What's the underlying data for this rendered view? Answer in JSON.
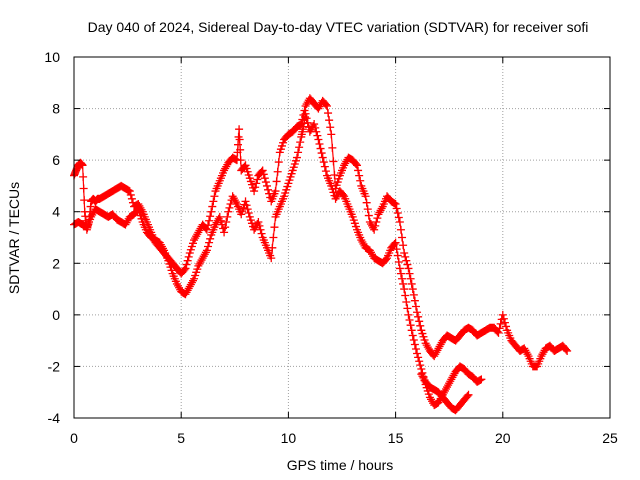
{
  "chart_data": {
    "type": "line",
    "title": "Day 040 of 2024, Sidereal Day-to-day VTEC variation (SDTVAR) for receiver sofi",
    "xlabel": "GPS time / hours",
    "ylabel": "SDTVAR / TECUs",
    "xlim": [
      0,
      25
    ],
    "ylim": [
      -4,
      10
    ],
    "xticks": [
      0,
      5,
      10,
      15,
      20,
      25
    ],
    "yticks": [
      -4,
      -2,
      0,
      2,
      4,
      6,
      8,
      10
    ],
    "grid": true,
    "marker": "+",
    "series_color": "#ff0000",
    "series": [
      {
        "name": "sofi",
        "x": [
          0.0,
          0.1,
          0.2,
          0.3,
          0.4,
          0.5,
          0.6,
          0.7,
          0.8,
          0.9,
          1.0,
          1.1,
          1.2,
          1.4,
          1.6,
          1.8,
          2.0,
          2.2,
          2.4,
          2.6,
          2.8,
          3.0,
          3.2,
          3.4,
          3.6,
          3.8,
          4.0,
          4.2,
          4.4,
          4.6,
          4.8,
          5.0,
          5.2,
          5.4,
          5.6,
          5.8,
          6.0,
          6.2,
          6.4,
          6.6,
          6.8,
          7.0,
          7.2,
          7.4,
          7.6,
          7.7,
          7.8,
          8.0,
          8.2,
          8.4,
          8.6,
          8.8,
          9.0,
          9.2,
          9.4,
          9.6,
          9.8,
          10.0,
          10.2,
          10.4,
          10.6,
          10.8,
          11.0,
          11.2,
          11.4,
          11.6,
          11.8,
          12.0,
          12.2,
          12.4,
          12.6,
          12.8,
          13.0,
          13.2,
          13.4,
          13.6,
          13.8,
          14.0,
          14.2,
          14.4,
          14.6,
          14.8,
          15.0,
          15.2,
          15.4,
          15.6,
          15.8,
          16.0,
          16.2,
          16.4,
          16.6,
          16.8,
          17.0,
          17.2,
          17.4,
          17.6,
          17.8,
          18.0,
          18.2,
          18.4,
          18.6,
          18.8,
          19.0,
          19.2,
          19.4,
          19.6,
          19.8,
          20.0,
          20.2,
          20.4,
          20.6,
          20.8,
          21.0,
          21.2,
          21.4,
          21.6,
          21.8,
          22.0,
          22.2,
          22.4,
          22.6,
          22.8,
          23.0
        ],
        "y": [
          5.4,
          5.6,
          5.8,
          5.9,
          5.8,
          4.0,
          3.3,
          3.6,
          4.4,
          4.5,
          4.4,
          4.5,
          4.5,
          4.6,
          4.7,
          4.8,
          4.9,
          5.0,
          4.9,
          4.8,
          4.2,
          4.3,
          4.0,
          3.6,
          3.2,
          2.8,
          2.6,
          2.4,
          2.2,
          2.0,
          1.8,
          1.6,
          1.8,
          2.4,
          2.9,
          3.2,
          3.5,
          3.3,
          4.0,
          4.8,
          5.2,
          5.6,
          5.9,
          6.1,
          6.0,
          7.2,
          5.6,
          5.8,
          5.3,
          4.8,
          5.4,
          5.6,
          5.0,
          4.4,
          4.8,
          6.3,
          6.8,
          7.0,
          7.1,
          7.3,
          7.4,
          8.1,
          8.4,
          8.2,
          8.0,
          8.3,
          8.1,
          7.0,
          4.9,
          5.4,
          5.8,
          6.1,
          6.0,
          5.8,
          5.0,
          4.6,
          3.6,
          3.3,
          3.9,
          4.2,
          4.6,
          4.4,
          4.3,
          3.6,
          2.4,
          1.8,
          1.0,
          0.1,
          -0.6,
          -1.1,
          -1.4,
          -1.6,
          -1.3,
          -1.0,
          -0.8,
          -0.9,
          -1.0,
          -0.8,
          -0.6,
          -0.5,
          -0.6,
          -0.8,
          -0.7,
          -0.6,
          -0.5,
          -0.5,
          -0.7,
          0.0,
          -0.6,
          -1.0,
          -1.2,
          -1.4,
          -1.3,
          -1.6,
          -2.0,
          -2.0,
          -1.6,
          -1.3,
          -1.2,
          -1.4,
          -1.3,
          -1.2,
          -1.4
        ]
      },
      {
        "name": "sofi",
        "x": [
          0.0,
          0.2,
          0.4,
          0.6,
          0.8,
          1.0,
          1.2,
          1.4,
          1.6,
          1.8,
          2.0,
          2.2,
          2.4,
          2.6,
          2.8,
          3.0,
          3.2,
          3.4,
          3.6,
          3.8,
          4.0,
          4.2,
          4.4,
          4.6,
          4.8,
          5.0,
          5.2,
          5.4,
          5.6,
          5.8,
          6.0,
          6.2,
          6.4,
          6.6,
          6.8,
          7.0,
          7.2,
          7.4,
          7.6,
          7.8,
          8.0,
          8.2,
          8.4,
          8.6,
          8.8,
          9.0,
          9.2,
          9.4,
          9.6,
          9.8,
          10.0,
          10.2,
          10.4,
          10.6,
          10.7,
          10.8,
          11.0,
          11.2,
          11.4,
          11.6,
          11.8,
          12.0,
          12.2,
          12.4,
          12.6,
          12.8,
          13.0,
          13.2,
          13.4,
          13.6,
          13.8,
          14.0,
          14.2,
          14.4,
          14.6,
          14.8,
          15.0,
          15.2,
          15.4,
          15.6,
          15.8,
          16.0,
          16.2,
          16.4,
          16.6,
          16.8,
          17.0,
          17.2,
          17.4,
          17.6,
          17.8,
          18.0,
          18.2,
          18.4,
          18.6,
          18.8,
          19.0
        ],
        "y": [
          3.5,
          3.6,
          3.5,
          3.4,
          3.8,
          4.1,
          4.0,
          3.9,
          3.8,
          3.9,
          3.7,
          3.6,
          3.5,
          3.8,
          3.9,
          4.1,
          3.6,
          3.2,
          3.0,
          2.9,
          2.8,
          2.5,
          2.1,
          1.6,
          1.2,
          0.9,
          0.8,
          1.1,
          1.4,
          1.9,
          2.2,
          2.5,
          3.1,
          3.5,
          3.8,
          3.2,
          4.0,
          4.6,
          4.3,
          3.9,
          4.4,
          3.8,
          3.3,
          3.6,
          3.0,
          2.6,
          2.2,
          3.8,
          4.2,
          4.6,
          5.1,
          5.6,
          6.1,
          6.9,
          7.3,
          7.8,
          7.1,
          7.4,
          6.8,
          6.1,
          5.4,
          5.0,
          4.5,
          4.8,
          4.6,
          4.2,
          3.8,
          3.3,
          2.9,
          2.6,
          2.5,
          2.2,
          2.1,
          2.0,
          2.2,
          2.6,
          2.8,
          1.8,
          1.0,
          0.0,
          -0.8,
          -1.5,
          -2.1,
          -2.7,
          -3.2,
          -3.5,
          -3.4,
          -3.1,
          -2.8,
          -2.5,
          -2.2,
          -2.0,
          -2.1,
          -2.3,
          -2.4,
          -2.6,
          -2.5
        ]
      },
      {
        "name": "sofi",
        "x": [
          16.2,
          16.4,
          16.6,
          16.8,
          17.0,
          17.2,
          17.4,
          17.6,
          17.8,
          18.0,
          18.2,
          18.4
        ],
        "y": [
          -2.3,
          -2.6,
          -2.8,
          -2.9,
          -3.0,
          -3.2,
          -3.4,
          -3.6,
          -3.7,
          -3.5,
          -3.3,
          -3.1
        ]
      }
    ]
  }
}
